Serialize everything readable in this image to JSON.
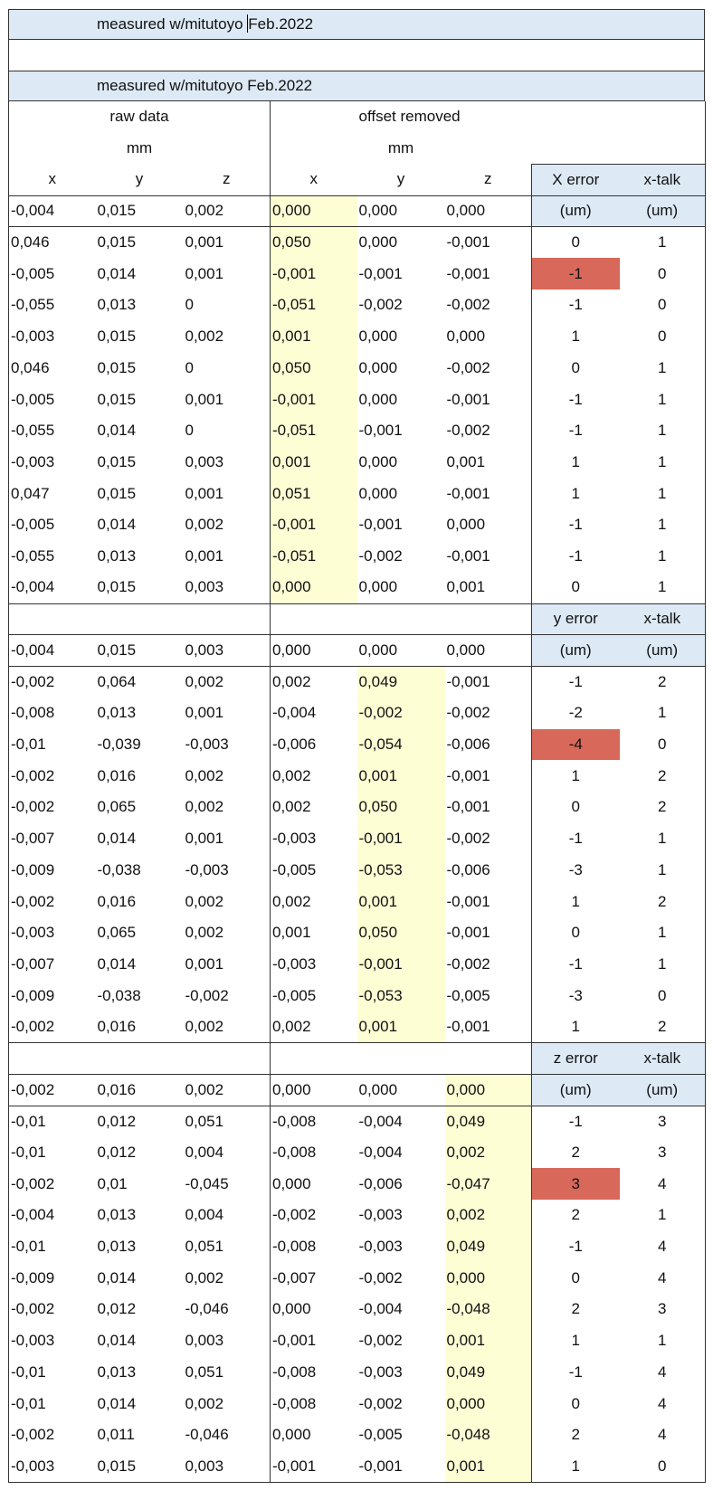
{
  "bands": {
    "top_note": "measured w/mitutoyo Feb.2022",
    "header_note": "measured w/mitutoyo Feb.2022"
  },
  "headers": {
    "raw_data": "raw data",
    "offset_removed": "offset removed",
    "unit_mm": "mm",
    "x": "x",
    "y": "y",
    "z": "z",
    "x_error": "X error",
    "y_error": "y error",
    "z_error": "z error",
    "xtalk": "x-talk",
    "um": "(um)"
  },
  "sections": [
    {
      "axis": "x",
      "error_label": "X error",
      "baseline": [
        "-0,004",
        "0,015",
        "0,002",
        "0,000",
        "0,000",
        "0,000"
      ],
      "rows": [
        [
          "0,046",
          "0,015",
          "0,001",
          "0,050",
          "0,000",
          "-0,001",
          "0",
          "1"
        ],
        [
          "-0,005",
          "0,014",
          "0,001",
          "-0,001",
          "-0,001",
          "-0,001",
          "-1",
          "0"
        ],
        [
          "-0,055",
          "0,013",
          "0",
          "-0,051",
          "-0,002",
          "-0,002",
          "-1",
          "0"
        ],
        [
          "-0,003",
          "0,015",
          "0,002",
          "0,001",
          "0,000",
          "0,000",
          "1",
          "0"
        ],
        [
          "0,046",
          "0,015",
          "0",
          "0,050",
          "0,000",
          "-0,002",
          "0",
          "1"
        ],
        [
          "-0,005",
          "0,015",
          "0,001",
          "-0,001",
          "0,000",
          "-0,001",
          "-1",
          "1"
        ],
        [
          "-0,055",
          "0,014",
          "0",
          "-0,051",
          "-0,001",
          "-0,002",
          "-1",
          "1"
        ],
        [
          "-0,003",
          "0,015",
          "0,003",
          "0,001",
          "0,000",
          "0,001",
          "1",
          "1"
        ],
        [
          "0,047",
          "0,015",
          "0,001",
          "0,051",
          "0,000",
          "-0,001",
          "1",
          "1"
        ],
        [
          "-0,005",
          "0,014",
          "0,002",
          "-0,001",
          "-0,001",
          "0,000",
          "-1",
          "1"
        ],
        [
          "-0,055",
          "0,013",
          "0,001",
          "-0,051",
          "-0,002",
          "-0,001",
          "-1",
          "1"
        ],
        [
          "-0,004",
          "0,015",
          "0,003",
          "0,000",
          "0,000",
          "0,001",
          "0",
          "1"
        ]
      ],
      "highlight_row": 1
    },
    {
      "axis": "y",
      "error_label": "y error",
      "baseline": [
        "-0,004",
        "0,015",
        "0,003",
        "0,000",
        "0,000",
        "0,000"
      ],
      "rows": [
        [
          "-0,002",
          "0,064",
          "0,002",
          "0,002",
          "0,049",
          "-0,001",
          "-1",
          "2"
        ],
        [
          "-0,008",
          "0,013",
          "0,001",
          "-0,004",
          "-0,002",
          "-0,002",
          "-2",
          "1"
        ],
        [
          "-0,01",
          "-0,039",
          "-0,003",
          "-0,006",
          "-0,054",
          "-0,006",
          "-4",
          "0"
        ],
        [
          "-0,002",
          "0,016",
          "0,002",
          "0,002",
          "0,001",
          "-0,001",
          "1",
          "2"
        ],
        [
          "-0,002",
          "0,065",
          "0,002",
          "0,002",
          "0,050",
          "-0,001",
          "0",
          "2"
        ],
        [
          "-0,007",
          "0,014",
          "0,001",
          "-0,003",
          "-0,001",
          "-0,002",
          "-1",
          "1"
        ],
        [
          "-0,009",
          "-0,038",
          "-0,003",
          "-0,005",
          "-0,053",
          "-0,006",
          "-3",
          "1"
        ],
        [
          "-0,002",
          "0,016",
          "0,002",
          "0,002",
          "0,001",
          "-0,001",
          "1",
          "2"
        ],
        [
          "-0,003",
          "0,065",
          "0,002",
          "0,001",
          "0,050",
          "-0,001",
          "0",
          "1"
        ],
        [
          "-0,007",
          "0,014",
          "0,001",
          "-0,003",
          "-0,001",
          "-0,002",
          "-1",
          "1"
        ],
        [
          "-0,009",
          "-0,038",
          "-0,002",
          "-0,005",
          "-0,053",
          "-0,005",
          "-3",
          "0"
        ],
        [
          "-0,002",
          "0,016",
          "0,002",
          "0,002",
          "0,001",
          "-0,001",
          "1",
          "2"
        ]
      ],
      "highlight_row": 2
    },
    {
      "axis": "z",
      "error_label": "z error",
      "baseline": [
        "-0,002",
        "0,016",
        "0,002",
        "0,000",
        "0,000",
        "0,000"
      ],
      "rows": [
        [
          "-0,01",
          "0,012",
          "0,051",
          "-0,008",
          "-0,004",
          "0,049",
          "-1",
          "3"
        ],
        [
          "-0,01",
          "0,012",
          "0,004",
          "-0,008",
          "-0,004",
          "0,002",
          "2",
          "3"
        ],
        [
          "-0,002",
          "0,01",
          "-0,045",
          "0,000",
          "-0,006",
          "-0,047",
          "3",
          "4"
        ],
        [
          "-0,004",
          "0,013",
          "0,004",
          "-0,002",
          "-0,003",
          "0,002",
          "2",
          "1"
        ],
        [
          "-0,01",
          "0,013",
          "0,051",
          "-0,008",
          "-0,003",
          "0,049",
          "-1",
          "4"
        ],
        [
          "-0,009",
          "0,014",
          "0,002",
          "-0,007",
          "-0,002",
          "0,000",
          "0",
          "4"
        ],
        [
          "-0,002",
          "0,012",
          "-0,046",
          "0,000",
          "-0,004",
          "-0,048",
          "2",
          "3"
        ],
        [
          "-0,003",
          "0,014",
          "0,003",
          "-0,001",
          "-0,002",
          "0,001",
          "1",
          "1"
        ],
        [
          "-0,01",
          "0,013",
          "0,051",
          "-0,008",
          "-0,003",
          "0,049",
          "-1",
          "4"
        ],
        [
          "-0,01",
          "0,014",
          "0,002",
          "-0,008",
          "-0,002",
          "0,000",
          "0",
          "4"
        ],
        [
          "-0,002",
          "0,011",
          "-0,046",
          "0,000",
          "-0,005",
          "-0,048",
          "2",
          "4"
        ],
        [
          "-0,003",
          "0,015",
          "0,003",
          "-0,001",
          "-0,001",
          "0,001",
          "1",
          "0"
        ]
      ],
      "highlight_row": 2
    }
  ],
  "colors": {
    "header_blue": "#dde9f5",
    "offset_yellow": "#fefed5",
    "error_red": "#d8685a",
    "grid": "#333333"
  }
}
